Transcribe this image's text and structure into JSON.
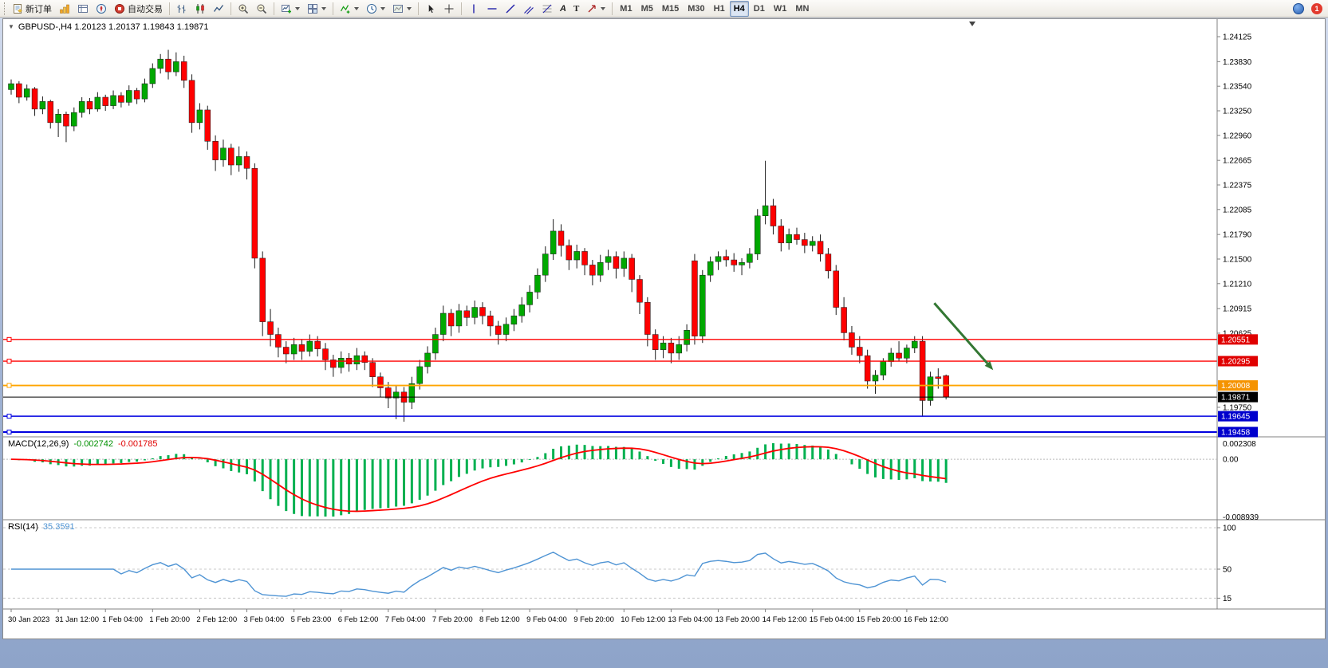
{
  "toolbar": {
    "new_order_label": "新订单",
    "auto_trading_label": "自动交易",
    "text_tool_label": "A",
    "label_tool_label": "T",
    "timeframes": [
      "M1",
      "M5",
      "M15",
      "M30",
      "H1",
      "H4",
      "D1",
      "W1",
      "MN"
    ],
    "active_timeframe": "H4",
    "notification_count": "1"
  },
  "icons": {
    "collapse_marker": "▼"
  },
  "chart": {
    "title_line": "GBPUSD-,H4 1.20123 1.20137 1.19843 1.19871",
    "symbol": "GBPUSD-",
    "timeframe": "H4"
  },
  "chart_data": {
    "type": "candlestick",
    "symbol": "GBPUSD-",
    "timeframe": "H4",
    "last_candle_ohlc": {
      "open": 1.20123,
      "high": 1.20137,
      "low": 1.19843,
      "close": 1.19871
    },
    "y_axis_labels": [
      "1.24125",
      "1.23830",
      "1.23540",
      "1.23250",
      "1.22960",
      "1.22665",
      "1.22375",
      "1.22085",
      "1.21790",
      "1.21500",
      "1.21210",
      "1.20915",
      "1.20625",
      "1.19750"
    ],
    "price_top_anchor": 1.24125,
    "price_bottom_anchor": 1.19458,
    "h_lines": [
      {
        "price": 1.20551,
        "label": "1.20551",
        "color": "#ff0000",
        "label_bg": "#e00000",
        "role": "resistance",
        "width": 1.4,
        "handle": true
      },
      {
        "price": 1.20295,
        "label": "1.20295",
        "color": "#ff0000",
        "label_bg": "#e00000",
        "role": "resistance",
        "width": 1.4,
        "handle": true
      },
      {
        "price": 1.20008,
        "label": "1.20008",
        "color": "#ffa500",
        "label_bg": "#f59300",
        "role": "pivot",
        "width": 1.8,
        "handle": true
      },
      {
        "price": 1.19871,
        "label": "1.19871",
        "color": "#000000",
        "label_bg": "#000000",
        "role": "bid",
        "width": 1,
        "handle": false
      },
      {
        "price": 1.19645,
        "label": "1.19645",
        "color": "#0000e0",
        "label_bg": "#0000cd",
        "role": "support",
        "width": 1.4,
        "handle": true
      },
      {
        "price": 1.19458,
        "label": "1.19458",
        "color": "#0000e0",
        "label_bg": "#0000cd",
        "role": "support",
        "width": 2,
        "handle": true
      }
    ],
    "x_labels": [
      {
        "i": 0,
        "t": "30 Jan 2023"
      },
      {
        "i": 6,
        "t": "31 Jan 12:00"
      },
      {
        "i": 12,
        "t": "1 Feb 04:00"
      },
      {
        "i": 18,
        "t": "1 Feb 20:00"
      },
      {
        "i": 24,
        "t": "2 Feb 12:00"
      },
      {
        "i": 30,
        "t": "3 Feb 04:00"
      },
      {
        "i": 36,
        "t": "5 Feb 23:00"
      },
      {
        "i": 42,
        "t": "6 Feb 12:00"
      },
      {
        "i": 48,
        "t": "7 Feb 04:00"
      },
      {
        "i": 54,
        "t": "7 Feb 20:00"
      },
      {
        "i": 60,
        "t": "8 Feb 12:00"
      },
      {
        "i": 66,
        "t": "9 Feb 04:00"
      },
      {
        "i": 72,
        "t": "9 Feb 20:00"
      },
      {
        "i": 78,
        "t": "10 Feb 12:00"
      },
      {
        "i": 84,
        "t": "13 Feb 04:00"
      },
      {
        "i": 90,
        "t": "13 Feb 20:00"
      },
      {
        "i": 96,
        "t": "14 Feb 12:00"
      },
      {
        "i": 102,
        "t": "15 Feb 04:00"
      },
      {
        "i": 108,
        "t": "15 Feb 20:00"
      },
      {
        "i": 114,
        "t": "16 Feb 12:00"
      }
    ],
    "candles": [
      [
        1.235,
        1.2362,
        1.2344,
        1.2357
      ],
      [
        1.2357,
        1.236,
        1.2334,
        1.2341
      ],
      [
        1.2341,
        1.2356,
        1.2337,
        1.2351
      ],
      [
        1.2351,
        1.2353,
        1.2319,
        1.2327
      ],
      [
        1.2327,
        1.2342,
        1.2321,
        1.2336
      ],
      [
        1.2336,
        1.2338,
        1.2304,
        1.2311
      ],
      [
        1.2311,
        1.2327,
        1.2294,
        1.2321
      ],
      [
        1.2321,
        1.2324,
        1.2288,
        1.2307
      ],
      [
        1.2307,
        1.2329,
        1.2301,
        1.2323
      ],
      [
        1.2323,
        1.2341,
        1.2317,
        1.2336
      ],
      [
        1.2336,
        1.234,
        1.2321,
        1.2327
      ],
      [
        1.2327,
        1.2347,
        1.2324,
        1.2341
      ],
      [
        1.2341,
        1.2344,
        1.2325,
        1.2331
      ],
      [
        1.2331,
        1.2349,
        1.2327,
        1.2343
      ],
      [
        1.2343,
        1.2347,
        1.2329,
        1.2335
      ],
      [
        1.2335,
        1.2355,
        1.2331,
        1.2349
      ],
      [
        1.2349,
        1.2352,
        1.2333,
        1.2339
      ],
      [
        1.2339,
        1.2363,
        1.2335,
        1.2357
      ],
      [
        1.2357,
        1.2381,
        1.2352,
        1.2375
      ],
      [
        1.2375,
        1.2392,
        1.2369,
        1.2386
      ],
      [
        1.2386,
        1.2397,
        1.2362,
        1.2371
      ],
      [
        1.2371,
        1.2394,
        1.2366,
        1.2383
      ],
      [
        1.2383,
        1.239,
        1.2352,
        1.2361
      ],
      [
        1.2361,
        1.2368,
        1.2299,
        1.2311
      ],
      [
        1.2311,
        1.2334,
        1.2303,
        1.2326
      ],
      [
        1.2326,
        1.2331,
        1.2279,
        1.2289
      ],
      [
        1.2289,
        1.2296,
        1.2254,
        1.2267
      ],
      [
        1.2267,
        1.2291,
        1.2259,
        1.2281
      ],
      [
        1.2281,
        1.2286,
        1.2249,
        1.2261
      ],
      [
        1.2261,
        1.2283,
        1.2253,
        1.2271
      ],
      [
        1.2271,
        1.2277,
        1.2244,
        1.2257
      ],
      [
        1.2257,
        1.2263,
        1.2139,
        1.2151
      ],
      [
        1.2151,
        1.2159,
        1.2059,
        1.2076
      ],
      [
        1.2076,
        1.2091,
        1.2047,
        1.2061
      ],
      [
        1.2061,
        1.2069,
        1.2034,
        1.2046
      ],
      [
        1.2046,
        1.2053,
        1.2027,
        1.2038
      ],
      [
        1.2038,
        1.2057,
        1.2031,
        1.2049
      ],
      [
        1.2049,
        1.2055,
        1.2031,
        1.2041
      ],
      [
        1.2041,
        1.2061,
        1.2035,
        1.2053
      ],
      [
        1.2053,
        1.2059,
        1.2035,
        1.2044
      ],
      [
        1.2044,
        1.2051,
        1.2019,
        1.2031
      ],
      [
        1.2031,
        1.2037,
        1.2011,
        1.2022
      ],
      [
        1.2022,
        1.2041,
        1.2015,
        1.2033
      ],
      [
        1.2033,
        1.2039,
        1.2017,
        1.2026
      ],
      [
        1.2026,
        1.2045,
        1.2019,
        1.2036
      ],
      [
        1.2036,
        1.2041,
        1.2019,
        1.2028
      ],
      [
        1.2028,
        1.2033,
        1.1999,
        1.2011
      ],
      [
        1.2011,
        1.2016,
        1.1987,
        1.1998
      ],
      [
        1.1998,
        1.2005,
        1.1974,
        1.1986
      ],
      [
        1.1986,
        1.2001,
        1.1961,
        1.1993
      ],
      [
        1.1993,
        1.1999,
        1.1958,
        1.1981
      ],
      [
        1.1981,
        1.2011,
        1.1973,
        1.2003
      ],
      [
        1.2003,
        1.2031,
        1.1996,
        1.2023
      ],
      [
        1.2023,
        1.2047,
        1.2015,
        1.2039
      ],
      [
        1.2039,
        1.2069,
        1.2031,
        1.2061
      ],
      [
        1.2061,
        1.2095,
        1.2053,
        1.2086
      ],
      [
        1.2086,
        1.2091,
        1.2059,
        1.2071
      ],
      [
        1.2071,
        1.2097,
        1.2063,
        1.2089
      ],
      [
        1.2089,
        1.2095,
        1.2071,
        1.2081
      ],
      [
        1.2081,
        1.2101,
        1.2073,
        1.2093
      ],
      [
        1.2093,
        1.2099,
        1.2073,
        1.2083
      ],
      [
        1.2083,
        1.2089,
        1.2059,
        1.2071
      ],
      [
        1.2071,
        1.2077,
        1.2049,
        1.2061
      ],
      [
        1.2061,
        1.2081,
        1.2053,
        1.2073
      ],
      [
        1.2073,
        1.2091,
        1.2065,
        1.2083
      ],
      [
        1.2083,
        1.2105,
        1.2075,
        1.2096
      ],
      [
        1.2096,
        1.2119,
        1.2087,
        1.2111
      ],
      [
        1.2111,
        1.2139,
        1.2103,
        1.2131
      ],
      [
        1.2131,
        1.2165,
        1.2123,
        1.2156
      ],
      [
        1.2156,
        1.2197,
        1.2149,
        1.2183
      ],
      [
        1.2183,
        1.2191,
        1.2153,
        1.2166
      ],
      [
        1.2166,
        1.2173,
        1.2137,
        1.2149
      ],
      [
        1.2149,
        1.2167,
        1.2139,
        1.2159
      ],
      [
        1.2159,
        1.2163,
        1.2131,
        1.2143
      ],
      [
        1.2143,
        1.2149,
        1.2119,
        1.2131
      ],
      [
        1.2131,
        1.2155,
        1.2123,
        1.2146
      ],
      [
        1.2146,
        1.2161,
        1.2137,
        1.2153
      ],
      [
        1.2153,
        1.2159,
        1.2127,
        1.2139
      ],
      [
        1.2139,
        1.2159,
        1.2129,
        1.2151
      ],
      [
        1.2151,
        1.2156,
        1.2111,
        1.2126
      ],
      [
        1.2126,
        1.2131,
        1.2085,
        1.2099
      ],
      [
        1.2099,
        1.2105,
        1.2047,
        1.2061
      ],
      [
        1.2061,
        1.2067,
        1.2031,
        1.2043
      ],
      [
        1.2043,
        1.2059,
        1.2033,
        1.2051
      ],
      [
        1.2051,
        1.2057,
        1.2027,
        1.2039
      ],
      [
        1.2039,
        1.2059,
        1.2031,
        1.2049
      ],
      [
        1.2049,
        1.2073,
        1.2041,
        1.2066
      ],
      [
        1.2148,
        1.2156,
        1.2049,
        1.2059
      ],
      [
        1.2059,
        1.2137,
        1.2051,
        1.2131
      ],
      [
        1.2131,
        1.2153,
        1.2123,
        1.2147
      ],
      [
        1.2147,
        1.2159,
        1.2137,
        1.2153
      ],
      [
        1.2153,
        1.2161,
        1.2141,
        1.2149
      ],
      [
        1.2149,
        1.2157,
        1.2135,
        1.2143
      ],
      [
        1.2143,
        1.2151,
        1.2131,
        1.2146
      ],
      [
        1.2146,
        1.2163,
        1.2139,
        1.2156
      ],
      [
        1.2156,
        1.2209,
        1.2149,
        1.2201
      ],
      [
        1.2201,
        1.2266,
        1.2191,
        1.2213
      ],
      [
        1.2213,
        1.2221,
        1.2179,
        1.2189
      ],
      [
        1.2189,
        1.2197,
        1.2159,
        1.2169
      ],
      [
        1.2169,
        1.2186,
        1.2161,
        1.2179
      ],
      [
        1.2179,
        1.2187,
        1.2167,
        1.2173
      ],
      [
        1.2173,
        1.2181,
        1.2157,
        1.2166
      ],
      [
        1.2166,
        1.2177,
        1.2159,
        1.2171
      ],
      [
        1.2171,
        1.2179,
        1.2147,
        1.2156
      ],
      [
        1.2156,
        1.2163,
        1.2127,
        1.2136
      ],
      [
        1.2136,
        1.2143,
        1.2084,
        1.2093
      ],
      [
        1.2093,
        1.2105,
        1.2054,
        1.2063
      ],
      [
        1.2063,
        1.2071,
        1.2037,
        1.2046
      ],
      [
        1.2046,
        1.2059,
        1.2027,
        1.2036
      ],
      [
        1.2036,
        1.2043,
        1.1997,
        1.2006
      ],
      [
        1.2006,
        1.2019,
        1.1991,
        1.2013
      ],
      [
        1.2013,
        1.2033,
        1.2007,
        1.2029
      ],
      [
        1.2029,
        1.2045,
        1.2023,
        1.2039
      ],
      [
        1.2039,
        1.2053,
        1.2029,
        1.2033
      ],
      [
        1.2033,
        1.2049,
        1.2027,
        1.2045
      ],
      [
        1.2045,
        1.2059,
        1.2039,
        1.2053
      ],
      [
        1.2053,
        1.2059,
        1.1964,
        1.1983
      ],
      [
        1.1983,
        1.2017,
        1.1977,
        1.2011
      ],
      [
        1.2011,
        1.2021,
        1.1997,
        1.2009
      ],
      [
        1.20123,
        1.20137,
        1.19843,
        1.19871
      ]
    ],
    "indicators": {
      "macd": {
        "label": "MACD(12,26,9)",
        "value_main": "-0.002742",
        "value_signal": "-0.001785",
        "params": [
          12,
          26,
          9
        ],
        "scale_labels": [
          "0.002308",
          "0.00",
          "-0.008939"
        ],
        "colors": {
          "histogram": "#00b050",
          "signal": "#ff0000"
        }
      },
      "rsi": {
        "label": "RSI(14)",
        "value": "35.3591",
        "period": 14,
        "levels": [
          100,
          50,
          15
        ],
        "scale_min": 0,
        "scale_max": 100,
        "color": "#4f94d4"
      }
    },
    "annotation_arrow": {
      "color": "#337733",
      "x1_index": 117.5,
      "price1": 1.2098,
      "x2_index": 125,
      "price2": 1.2019
    },
    "colors": {
      "bull": "#00a800",
      "bear": "#ff0000",
      "background": "#ffffff",
      "axis_text": "#000000"
    }
  }
}
